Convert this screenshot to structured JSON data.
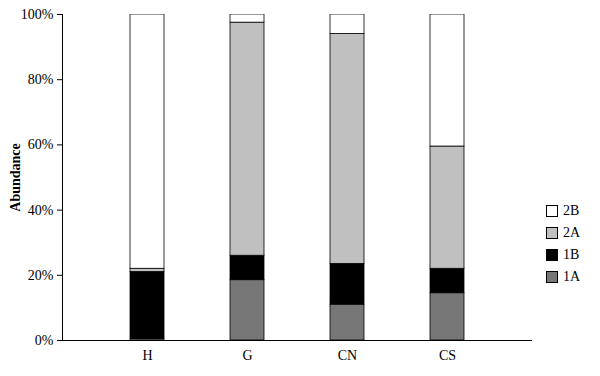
{
  "chart_data": {
    "type": "bar",
    "stacked": true,
    "categories": [
      "H",
      "G",
      "CN",
      "CS"
    ],
    "y_label": "Abundance",
    "ylim": [
      0,
      100
    ],
    "yticks": [
      {
        "value": 0,
        "label": "0%"
      },
      {
        "value": 20,
        "label": "20%"
      },
      {
        "value": 40,
        "label": "40%"
      },
      {
        "value": 60,
        "label": "60%"
      },
      {
        "value": 80,
        "label": "80%"
      },
      {
        "value": 100,
        "label": "100%"
      }
    ],
    "legend": "right",
    "series": [
      {
        "name": "1A",
        "color": "#777777",
        "values": [
          0.5,
          18.5,
          11,
          14.5
        ]
      },
      {
        "name": "1B",
        "color": "#000000",
        "values": [
          20.5,
          7.5,
          12.5,
          7.5
        ]
      },
      {
        "name": "2A",
        "color": "#c0c0c0",
        "values": [
          1,
          71.5,
          70.5,
          37.5
        ]
      },
      {
        "name": "2B",
        "color": "#ffffff",
        "values": [
          78,
          2.5,
          6,
          40.5
        ]
      }
    ]
  }
}
